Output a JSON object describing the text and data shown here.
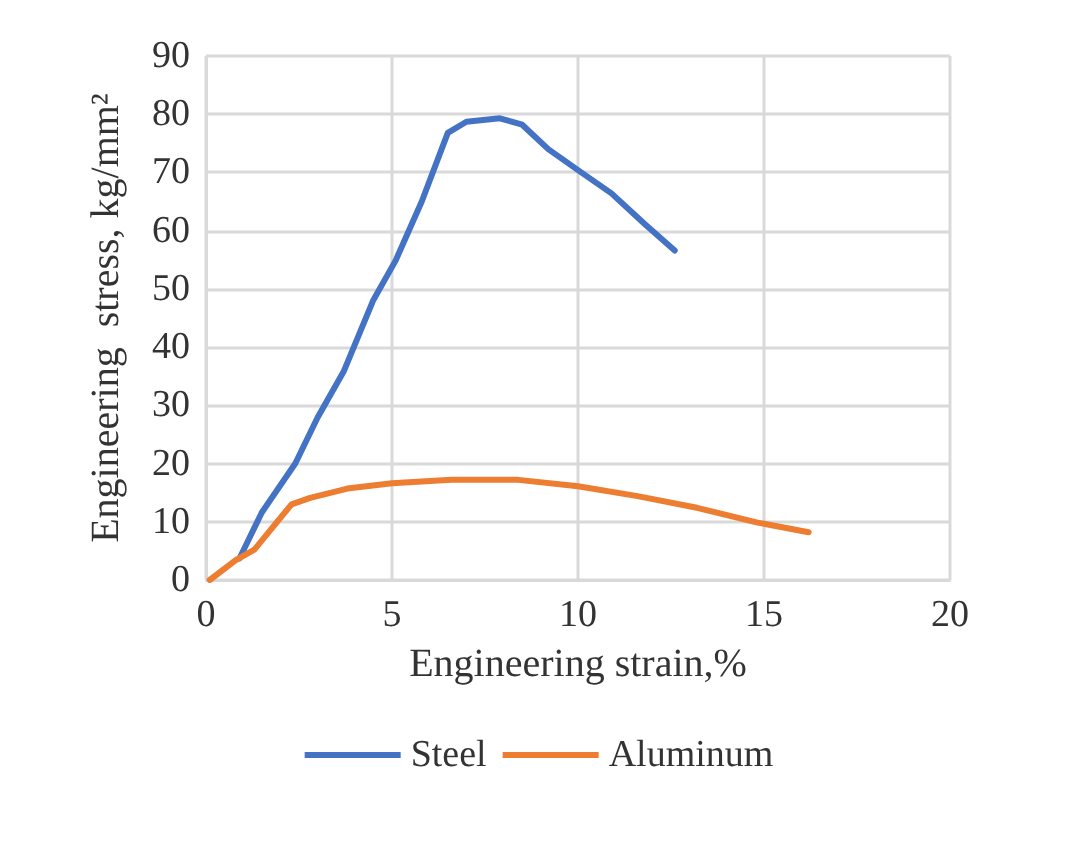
{
  "chart_data": {
    "type": "line",
    "xlabel": "Engineering strain,%",
    "ylabel": "Engineering  stress, kg/mm²",
    "xlim": [
      0,
      20
    ],
    "xticks": [
      0,
      5,
      10,
      15,
      20
    ],
    "ylim": [
      0,
      90
    ],
    "yticks": [
      0,
      10,
      20,
      30,
      40,
      50,
      60,
      70,
      80,
      90
    ],
    "grid": true,
    "legend": "bottom",
    "marker": "none",
    "line_style": "solid",
    "series": [
      {
        "name": "Steel",
        "color": "#4472c4",
        "x": [
          0.9,
          1.5,
          2.4,
          3.0,
          3.7,
          4.5,
          5.1,
          5.8,
          6.5,
          7.0,
          7.9,
          8.5,
          9.2,
          10.0,
          10.9,
          11.8,
          12.6
        ],
        "values": [
          3.7,
          11.6,
          20,
          27.9,
          35.8,
          48.1,
          54.9,
          65,
          76.8,
          78.7,
          79.3,
          78.2,
          74,
          70.4,
          66.4,
          61.1,
          56.6
        ]
      },
      {
        "name": "Aluminum",
        "color": "#ed7d31",
        "x": [
          0.1,
          0.8,
          1.3,
          1.9,
          2.3,
          2.8,
          3.8,
          5.0,
          6.6,
          8.4,
          10.0,
          11.6,
          13.2,
          14.8,
          16.2
        ],
        "values": [
          0,
          3.4,
          5.2,
          9.9,
          13,
          14.1,
          15.7,
          16.6,
          17.2,
          17.2,
          16.1,
          14.4,
          12.4,
          9.9,
          8.2
        ]
      }
    ]
  }
}
